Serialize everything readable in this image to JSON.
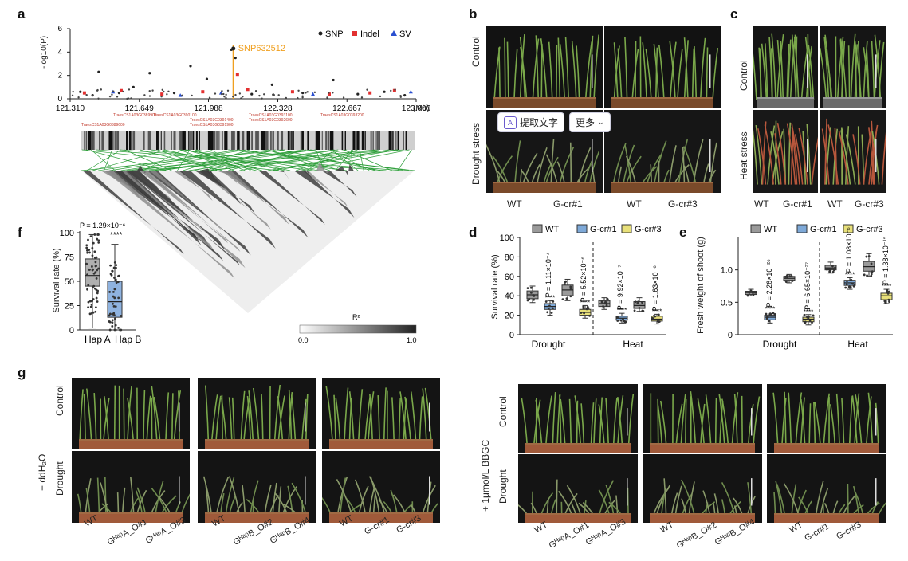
{
  "panels": {
    "a": "a",
    "b": "b",
    "c": "c",
    "d": "d",
    "e": "e",
    "f": "f",
    "g": "g"
  },
  "panel_a": {
    "ylabel": "-log10(P)",
    "legend": [
      "SNP",
      "Indel",
      "SV"
    ],
    "lead_snp": "SNP632512",
    "x_ticks": [
      "121.310",
      "121.649",
      "121.988",
      "122.328",
      "122.667",
      "123.006"
    ],
    "x_unit": "(Mb)",
    "y_ticks": [
      "0",
      "2",
      "4",
      "6"
    ],
    "gene_labels": [
      "TraesCS1A03G0389900",
      "TraesCS1A03G0390100",
      "TraesCS1A03G0391400",
      "TraesCS1A03G0391900",
      "TraesCS1A03G0392600",
      "TraesCS1A03G0393100",
      "TraesCS1A03G0393200",
      "TraesCS1A03G0389600"
    ],
    "ld_legend_title": "R²",
    "ld_min": "0.0",
    "ld_max": "1.0"
  },
  "panel_b": {
    "row_labels": [
      "Control",
      "Drought stress"
    ],
    "col_labels": [
      "WT",
      "G-cr#1",
      "WT",
      "G-cr#3"
    ]
  },
  "panel_c": {
    "row_labels": [
      "Control",
      "Heat stress"
    ],
    "col_labels": [
      "WT",
      "G-cr#1",
      "WT",
      "G-cr#3"
    ]
  },
  "toolbar": {
    "extract_text": "提取文字",
    "more": "更多",
    "icon_letter": "A"
  },
  "panel_d": {
    "ylabel": "Survival rate (%)",
    "groups": [
      "Drought",
      "Heat"
    ],
    "legend": [
      "WT",
      "G-cr#1",
      "G-cr#3"
    ],
    "p_values": [
      "P = 1.11×10⁻⁴",
      "P = 5.52×10⁻⁶",
      "P = 9.92×10⁻⁷",
      "P = 1.63×10⁻⁶"
    ],
    "stars": "****",
    "y_ticks": [
      "0",
      "20",
      "40",
      "60",
      "80",
      "100"
    ]
  },
  "panel_e": {
    "ylabel": "Fresh weight of shoot (g)",
    "groups": [
      "Drought",
      "Heat"
    ],
    "legend": [
      "WT",
      "G-cr#1",
      "G-cr#3"
    ],
    "p_values": [
      "P = 2.26×10⁻²⁶",
      "P = 6.65×10⁻²⁷",
      "P = 1.08×10⁻⁶",
      "P = 1.38×10⁻¹⁵"
    ],
    "stars": "****",
    "y_ticks": [
      "0",
      "0.5",
      "1.0"
    ]
  },
  "panel_f": {
    "ylabel": "Survival rate (%)",
    "p_value": "P = 1.29×10⁻⁶",
    "stars": "****",
    "categories": [
      "Hap A",
      "Hap B"
    ],
    "y_ticks": [
      "0",
      "25",
      "50",
      "75",
      "100"
    ]
  },
  "panel_g": {
    "treatments": [
      "+ ddH₂O",
      "+ 1μmol/L BBGC"
    ],
    "row_labels": [
      "Control",
      "Drought"
    ],
    "genotype_labels": [
      [
        "WT",
        "GᴴᵃᵖA_O#1",
        "GᴴᵃᵖA_O#3"
      ],
      [
        "WT",
        "GᴴᵃᵖB_O#2",
        "GᴴᵃᵖB_O#4"
      ],
      [
        "WT",
        "G-cr#1",
        "G-cr#3"
      ]
    ]
  },
  "colors": {
    "wt": "#9a9a9a",
    "cr1": "#7ea9d8",
    "cr3": "#e8e07a",
    "hapA": "#b0b0b0",
    "hapB": "#8fb3e0",
    "snp": "#222222",
    "indel": "#e23030",
    "sv": "#2a4fd0",
    "lead": "#f0a020"
  },
  "chart_data": [
    {
      "type": "scatter",
      "panel": "a",
      "xlabel": "(Mb)",
      "ylabel": "-log10(P)",
      "xlim": [
        121.31,
        123.006
      ],
      "ylim": [
        0,
        6
      ],
      "series": [
        {
          "name": "SNP",
          "points": [
            [
              121.36,
              0.6
            ],
            [
              121.42,
              0.3
            ],
            [
              121.45,
              2.3
            ],
            [
              121.55,
              0.5
            ],
            [
              121.62,
              1.0
            ],
            [
              121.7,
              2.2
            ],
            [
              121.82,
              0.5
            ],
            [
              121.9,
              2.8
            ],
            [
              121.98,
              1.7
            ],
            [
              122.1,
              4.2
            ],
            [
              122.12,
              3.5
            ],
            [
              122.2,
              0.4
            ],
            [
              122.3,
              1.2
            ],
            [
              122.45,
              0.5
            ],
            [
              122.6,
              1.6
            ],
            [
              122.72,
              0.4
            ],
            [
              122.85,
              0.6
            ],
            [
              122.95,
              0.3
            ]
          ]
        },
        {
          "name": "Indel",
          "points": [
            [
              121.38,
              0.5
            ],
            [
              121.56,
              0.7
            ],
            [
              121.76,
              0.4
            ],
            [
              121.96,
              0.6
            ],
            [
              122.13,
              2.1
            ],
            [
              122.18,
              0.8
            ],
            [
              122.4,
              0.6
            ],
            [
              122.58,
              0.4
            ],
            [
              122.78,
              0.5
            ],
            [
              122.9,
              0.7
            ]
          ]
        },
        {
          "name": "SV",
          "points": [
            [
              121.52,
              0.6
            ],
            [
              121.85,
              0.3
            ],
            [
              122.05,
              0.5
            ],
            [
              122.5,
              0.4
            ],
            [
              122.98,
              0.6
            ]
          ]
        }
      ]
    },
    {
      "type": "box",
      "panel": "f",
      "ylabel": "Survival rate (%)",
      "categories": [
        "Hap A",
        "Hap B"
      ],
      "ylim": [
        0,
        100
      ],
      "boxes": [
        {
          "name": "Hap A",
          "min": 2,
          "q1": 45,
          "median": 56,
          "q3": 73,
          "max": 98
        },
        {
          "name": "Hap B",
          "min": 0,
          "q1": 13,
          "median": 29,
          "q3": 50,
          "max": 88
        }
      ]
    },
    {
      "type": "box",
      "panel": "d",
      "ylabel": "Survival rate (%)",
      "groups": [
        "Drought",
        "Heat"
      ],
      "ylim": [
        0,
        100
      ],
      "series": [
        {
          "name": "WT",
          "boxes": [
            {
              "min": 33,
              "q1": 37,
              "median": 41,
              "q3": 45,
              "max": 50
            },
            {
              "min": 26,
              "q1": 29,
              "median": 32,
              "q3": 35,
              "max": 38
            }
          ]
        },
        {
          "name": "G-cr#1",
          "boxes": [
            {
              "min": 20,
              "q1": 26,
              "median": 29,
              "q3": 32,
              "max": 35
            },
            {
              "min": 12,
              "q1": 15,
              "median": 17,
              "q3": 19,
              "max": 22
            }
          ]
        },
        {
          "name": "G-cr#3",
          "boxes": [
            {
              "min": 35,
              "q1": 40,
              "median": 46,
              "q3": 51,
              "max": 57
            },
            {
              "min": 24,
              "q1": 27,
              "median": 30,
              "q3": 34,
              "max": 38
            }
          ]
        },
        {
          "name": "G-cr#3b",
          "boxes": [
            {
              "min": 17,
              "q1": 20,
              "median": 23,
              "q3": 26,
              "max": 30
            },
            {
              "min": 11,
              "q1": 14,
              "median": 16,
              "q3": 19,
              "max": 21
            }
          ]
        }
      ]
    },
    {
      "type": "box",
      "panel": "e",
      "ylabel": "Fresh weight of shoot (g)",
      "groups": [
        "Drought",
        "Heat"
      ],
      "ylim": [
        0,
        1.5
      ],
      "series": [
        {
          "name": "WT",
          "boxes": [
            {
              "min": 0.6,
              "q1": 0.62,
              "median": 0.65,
              "q3": 0.67,
              "max": 0.7
            },
            {
              "min": 0.95,
              "q1": 1.0,
              "median": 1.03,
              "q3": 1.07,
              "max": 1.12
            }
          ]
        },
        {
          "name": "G-cr#1",
          "boxes": [
            {
              "min": 0.18,
              "q1": 0.23,
              "median": 0.27,
              "q3": 0.3,
              "max": 0.35
            },
            {
              "min": 0.7,
              "q1": 0.76,
              "median": 0.8,
              "q3": 0.84,
              "max": 0.88
            }
          ]
        },
        {
          "name": "WT2",
          "boxes": [
            {
              "min": 0.8,
              "q1": 0.84,
              "median": 0.87,
              "q3": 0.9,
              "max": 0.93
            },
            {
              "min": 0.9,
              "q1": 0.98,
              "median": 1.05,
              "q3": 1.13,
              "max": 1.25
            }
          ]
        },
        {
          "name": "G-cr#3",
          "boxes": [
            {
              "min": 0.15,
              "q1": 0.2,
              "median": 0.24,
              "q3": 0.27,
              "max": 0.31
            },
            {
              "min": 0.48,
              "q1": 0.54,
              "median": 0.6,
              "q3": 0.64,
              "max": 0.7
            }
          ]
        }
      ]
    }
  ]
}
